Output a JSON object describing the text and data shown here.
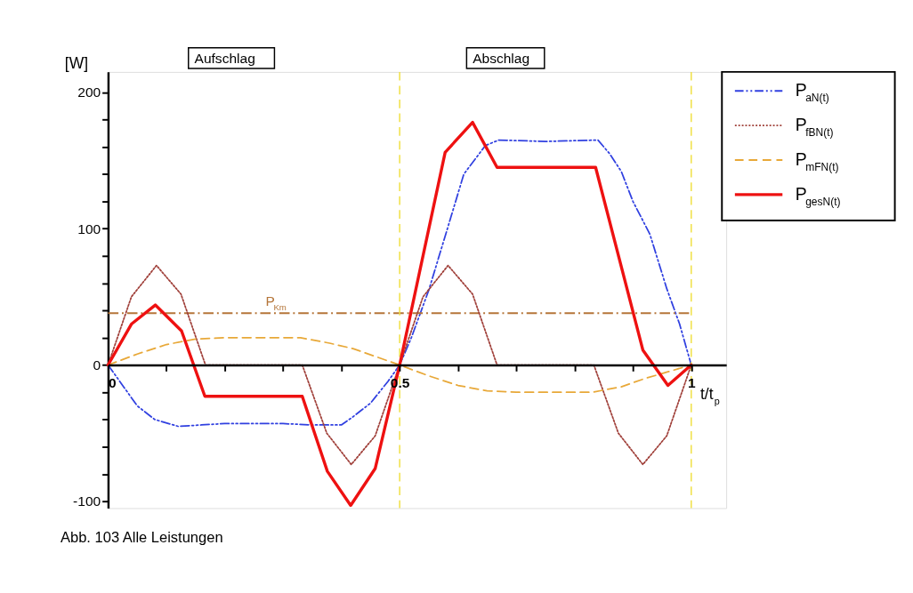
{
  "chart_data": {
    "type": "line",
    "xlabel": "t/t$_{p}$",
    "ylabel": "[W]",
    "xlim": [
      0,
      1.06
    ],
    "ylim": [
      -105,
      215
    ],
    "xticks": [
      0,
      {
        "value": 0.1,
        "label": null
      },
      {
        "value": 0.2,
        "label": null
      },
      {
        "value": 0.3,
        "label": null
      },
      {
        "value": 0.4,
        "label": null
      },
      0.5,
      {
        "value": 0.6,
        "label": null
      },
      {
        "value": 0.7,
        "label": null
      },
      {
        "value": 0.8,
        "label": null
      },
      {
        "value": 0.9,
        "label": null
      },
      1
    ],
    "yticks": [
      {
        "value": -100,
        "label": "-100"
      },
      {
        "value": -80,
        "label": null
      },
      {
        "value": -60,
        "label": null
      },
      {
        "value": -40,
        "label": null
      },
      {
        "value": -20,
        "label": null
      },
      0,
      {
        "value": 20,
        "label": null
      },
      {
        "value": 40,
        "label": null
      },
      {
        "value": 60,
        "label": null
      },
      {
        "value": 80,
        "label": null
      },
      100,
      {
        "value": 120,
        "label": null
      },
      {
        "value": 140,
        "label": null
      },
      {
        "value": 160,
        "label": null
      },
      {
        "value": 180,
        "label": null
      },
      200
    ],
    "grid": false,
    "legend": "top right",
    "marker": "none",
    "series": [
      {
        "name": "P$_{aN(t)}$",
        "color": "#3040e0",
        "line_style": "dashdotdot",
        "x": [
          0,
          0.02,
          0.05,
          0.08,
          0.12,
          0.16,
          0.2,
          0.3,
          0.35,
          0.4,
          0.42,
          0.45,
          0.48,
          0.5,
          0.52,
          0.55,
          0.584,
          0.61,
          0.647,
          0.67,
          0.75,
          0.84,
          0.86,
          0.88,
          0.9,
          0.929,
          0.958,
          0.98,
          1
        ],
        "values": [
          0,
          -12,
          -30,
          -40,
          -45,
          -44,
          -43,
          -43,
          -44,
          -44,
          -38,
          -28,
          -12,
          0,
          20,
          55,
          103,
          140,
          161,
          165,
          164,
          165,
          155,
          142,
          120,
          96,
          56,
          30,
          0
        ]
      },
      {
        "name": "P$_{fBN(t)}$",
        "color": "#a0403a",
        "line_style": "dotted",
        "x": [
          0,
          0.04,
          0.083,
          0.125,
          0.167,
          0.333,
          0.375,
          0.417,
          0.458,
          0.5,
          0.54,
          0.583,
          0.625,
          0.667,
          0.833,
          0.875,
          0.917,
          0.958,
          1
        ],
        "values": [
          0,
          50,
          73,
          52,
          0,
          0,
          -50,
          -73,
          -52,
          0,
          50,
          73,
          52,
          0,
          0,
          -50,
          -73,
          -52,
          0
        ]
      },
      {
        "name": "P$_{mFN(t)}$",
        "color": "#e8a838",
        "line_style": "dashed",
        "x": [
          0,
          0.05,
          0.1,
          0.15,
          0.2,
          0.33,
          0.38,
          0.42,
          0.46,
          0.5,
          0.55,
          0.6,
          0.65,
          0.7,
          0.83,
          0.88,
          0.92,
          0.96,
          1
        ],
        "values": [
          0,
          8,
          15,
          19,
          20,
          20,
          16,
          12,
          6,
          0,
          -8,
          -15,
          -19,
          -20,
          -20,
          -16,
          -10,
          -5,
          0
        ]
      },
      {
        "name": "P$_{gesN(t)}$",
        "color": "#ee1111",
        "line_style": "solid",
        "x": [
          0,
          0.04,
          0.081,
          0.126,
          0.166,
          0.333,
          0.376,
          0.416,
          0.458,
          0.5,
          0.578,
          0.625,
          0.667,
          0.836,
          0.917,
          0.96,
          1
        ],
        "values": [
          0,
          30,
          44,
          25,
          -23,
          -23,
          -78,
          -103,
          -76,
          0,
          156,
          178,
          145,
          145,
          11,
          -15,
          0
        ]
      }
    ],
    "ref_lines": [
      {
        "axis": "y",
        "value": 38,
        "label": "P$_{Km}$",
        "color": "#b5763a",
        "line_style": "dashdot"
      },
      {
        "axis": "x",
        "value": 0.5,
        "color": "#f0e040",
        "line_style": "dashed"
      },
      {
        "axis": "x",
        "value": 1,
        "color": "#f0e040",
        "line_style": "dashed"
      }
    ],
    "annotations": [
      "Aufschlag",
      "Abschlag",
      "Abb. 103   Alle Leistungen"
    ]
  }
}
